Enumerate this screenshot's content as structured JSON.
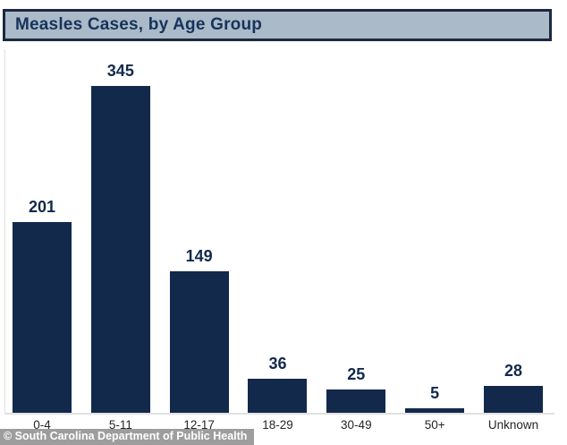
{
  "title": "Measles Cases, by Age Group",
  "footer": {
    "credit": "© South Carolina Department of Public Health"
  },
  "colors": {
    "bar": "#12294b",
    "title_bg": "#abbac8",
    "title_border": "#1b2940",
    "title_text": "#17335b",
    "axis_line": "#e0e0e0",
    "xlabel_text": "#262626",
    "footer_bg": "#9d9d9d",
    "footer_text": "#ffffff"
  },
  "chart_data": {
    "type": "bar",
    "title": "Measles Cases, by Age Group",
    "categories": [
      "0-4",
      "5-11",
      "12-17",
      "18-29",
      "30-49",
      "50+",
      "Unknown"
    ],
    "values": [
      201,
      345,
      149,
      36,
      25,
      5,
      28
    ],
    "xlabel": "",
    "ylabel": "",
    "ylim": [
      0,
      360
    ],
    "grid": false,
    "legend": false,
    "data_labels": true
  }
}
